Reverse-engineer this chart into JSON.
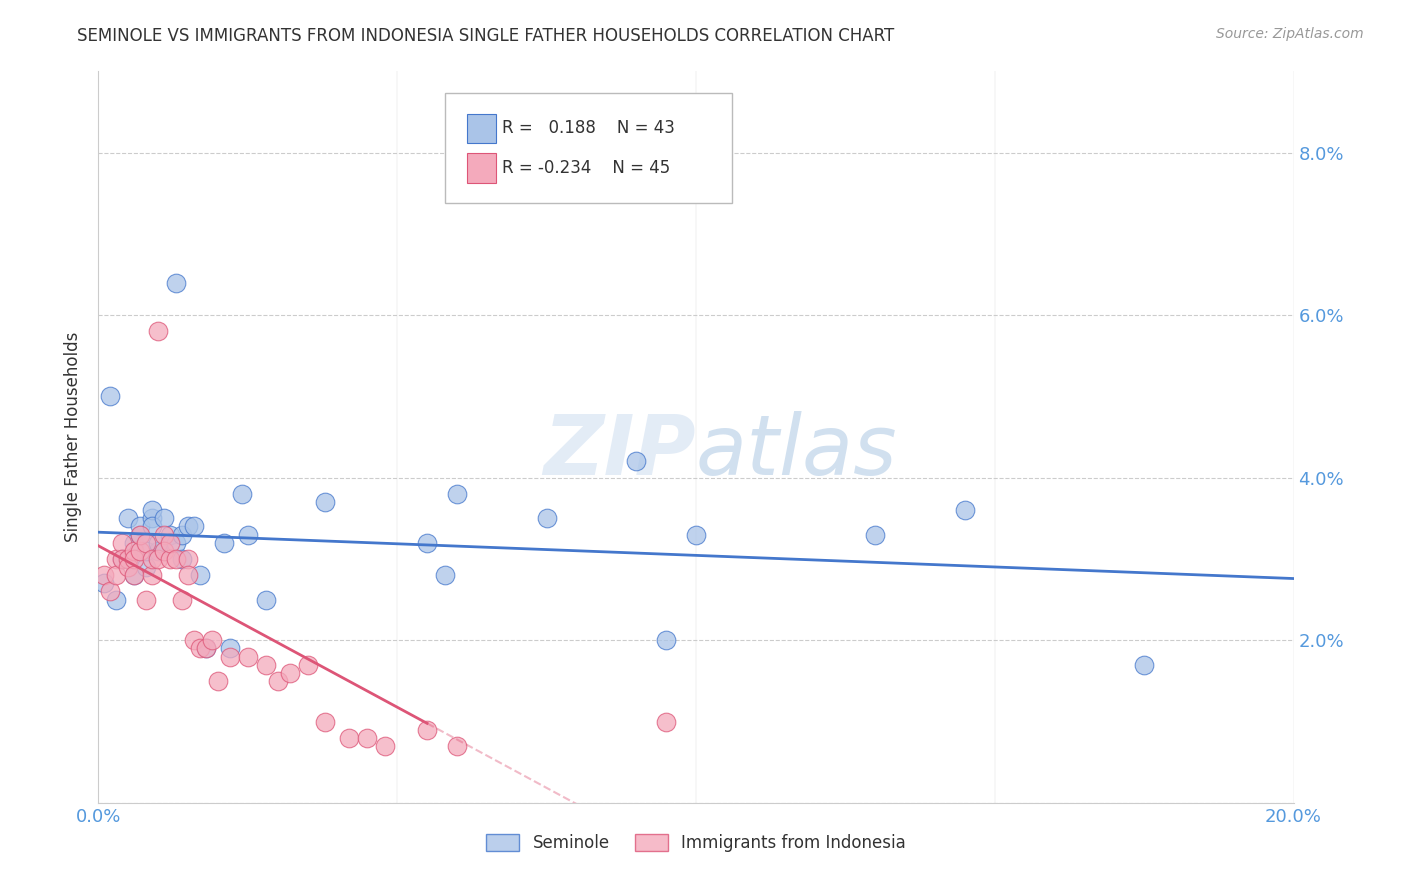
{
  "title": "SEMINOLE VS IMMIGRANTS FROM INDONESIA SINGLE FATHER HOUSEHOLDS CORRELATION CHART",
  "source": "Source: ZipAtlas.com",
  "ylabel": "Single Father Households",
  "xlim": [
    0.0,
    0.2
  ],
  "ylim": [
    0.0,
    0.09
  ],
  "seminole_R": 0.188,
  "seminole_N": 43,
  "indonesia_R": -0.234,
  "indonesia_N": 45,
  "blue_color": "#aac4e8",
  "pink_color": "#f4aabc",
  "line_blue": "#4477cc",
  "line_pink": "#dd5577",
  "axis_color": "#5599DD",
  "seminole_x": [
    0.001,
    0.002,
    0.003,
    0.004,
    0.005,
    0.005,
    0.006,
    0.006,
    0.007,
    0.007,
    0.008,
    0.008,
    0.009,
    0.009,
    0.009,
    0.01,
    0.01,
    0.011,
    0.012,
    0.013,
    0.013,
    0.014,
    0.014,
    0.015,
    0.016,
    0.017,
    0.018,
    0.021,
    0.022,
    0.024,
    0.025,
    0.028,
    0.038,
    0.055,
    0.058,
    0.06,
    0.075,
    0.09,
    0.095,
    0.1,
    0.13,
    0.145,
    0.175
  ],
  "seminole_y": [
    0.027,
    0.05,
    0.025,
    0.03,
    0.035,
    0.03,
    0.028,
    0.032,
    0.033,
    0.034,
    0.029,
    0.031,
    0.035,
    0.036,
    0.034,
    0.031,
    0.032,
    0.035,
    0.033,
    0.064,
    0.032,
    0.03,
    0.033,
    0.034,
    0.034,
    0.028,
    0.019,
    0.032,
    0.019,
    0.038,
    0.033,
    0.025,
    0.037,
    0.032,
    0.028,
    0.038,
    0.035,
    0.042,
    0.02,
    0.033,
    0.033,
    0.036,
    0.017
  ],
  "indonesia_x": [
    0.001,
    0.002,
    0.003,
    0.003,
    0.004,
    0.004,
    0.005,
    0.005,
    0.006,
    0.006,
    0.006,
    0.007,
    0.007,
    0.008,
    0.008,
    0.009,
    0.009,
    0.01,
    0.01,
    0.011,
    0.011,
    0.012,
    0.012,
    0.013,
    0.014,
    0.015,
    0.015,
    0.016,
    0.017,
    0.018,
    0.019,
    0.02,
    0.022,
    0.025,
    0.028,
    0.03,
    0.032,
    0.035,
    0.038,
    0.042,
    0.045,
    0.048,
    0.055,
    0.06,
    0.095
  ],
  "indonesia_y": [
    0.028,
    0.026,
    0.03,
    0.028,
    0.032,
    0.03,
    0.03,
    0.029,
    0.031,
    0.03,
    0.028,
    0.031,
    0.033,
    0.032,
    0.025,
    0.028,
    0.03,
    0.03,
    0.058,
    0.033,
    0.031,
    0.03,
    0.032,
    0.03,
    0.025,
    0.03,
    0.028,
    0.02,
    0.019,
    0.019,
    0.02,
    0.015,
    0.018,
    0.018,
    0.017,
    0.015,
    0.016,
    0.017,
    0.01,
    0.008,
    0.008,
    0.007,
    0.009,
    0.007,
    0.01
  ]
}
